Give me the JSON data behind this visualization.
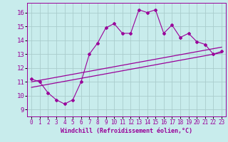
{
  "xlabel": "Windchill (Refroidissement éolien,°C)",
  "bg_color": "#c8ecec",
  "line_color": "#990099",
  "grid_color": "#aacccc",
  "xlim": [
    -0.5,
    23.5
  ],
  "ylim": [
    8.5,
    16.7
  ],
  "xticks": [
    0,
    1,
    2,
    3,
    4,
    5,
    6,
    7,
    8,
    9,
    10,
    11,
    12,
    13,
    14,
    15,
    16,
    17,
    18,
    19,
    20,
    21,
    22,
    23
  ],
  "yticks": [
    9,
    10,
    11,
    12,
    13,
    14,
    15,
    16
  ],
  "series1_x": [
    0,
    1,
    2,
    3,
    4,
    5,
    6,
    7,
    8,
    9,
    10,
    11,
    12,
    13,
    14,
    15,
    16,
    17,
    18,
    19,
    20,
    21,
    22,
    23
  ],
  "series1_y": [
    11.2,
    11.0,
    10.2,
    9.7,
    9.4,
    9.7,
    11.0,
    13.0,
    13.8,
    14.9,
    15.2,
    14.5,
    14.5,
    16.2,
    16.0,
    16.2,
    14.5,
    15.1,
    14.2,
    14.5,
    13.9,
    13.7,
    13.0,
    13.2
  ],
  "series2_x": [
    0,
    23
  ],
  "series2_y": [
    10.6,
    13.1
  ],
  "series3_x": [
    0,
    23
  ],
  "series3_y": [
    11.0,
    13.5
  ]
}
